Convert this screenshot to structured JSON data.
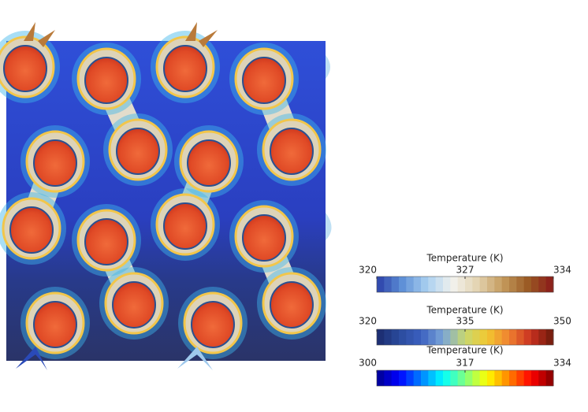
{
  "colorbars": [
    {
      "title": "Temperature (K)",
      "ticks": [
        320,
        327,
        334
      ],
      "colors": [
        "#2b3fa8",
        "#5d8fd6",
        "#a9d0f0",
        "#f2f2ee",
        "#e3d3b0",
        "#c49a5c",
        "#9a5a24",
        "#8b1a1a"
      ]
    },
    {
      "title": "Temperature (K)",
      "ticks": [
        320,
        335,
        350
      ],
      "colors": [
        "#1a2a6c",
        "#2a4a9c",
        "#3b5fc0",
        "#7aa6d8",
        "#c8d870",
        "#f2c830",
        "#f08030",
        "#c83020",
        "#6a1a0a"
      ]
    },
    {
      "title": "Temperature (K)",
      "ticks": [
        300,
        317,
        334
      ],
      "colors": [
        "#00008f",
        "#0000ff",
        "#0080ff",
        "#00ffff",
        "#80ff80",
        "#ffff00",
        "#ff8000",
        "#ff0000",
        "#800000"
      ]
    }
  ]
}
